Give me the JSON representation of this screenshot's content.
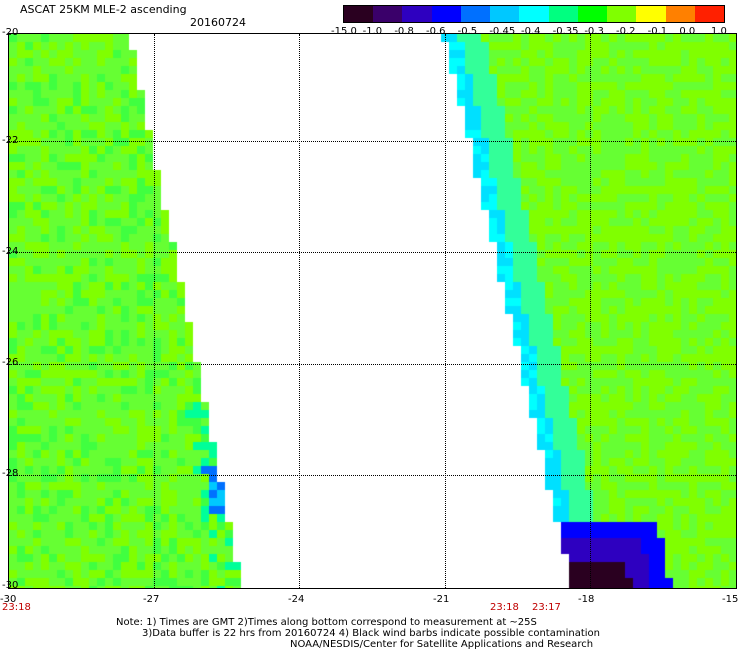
{
  "header": {
    "title": "ASCAT 25KM MLE-2 ascending",
    "date": "20160724"
  },
  "colorbar": {
    "labels": [
      "-15.0",
      "-1.0",
      "-0.8",
      "-0.6",
      "-0.5",
      "-0.45",
      "-0.4",
      "-0.35",
      "-0.3",
      "-0.2",
      "-0.1",
      "0.0",
      "1.0"
    ],
    "colors": [
      "#2a0020",
      "#3a006a",
      "#2e00c0",
      "#0000ff",
      "#0070ff",
      "#00c8ff",
      "#00ffff",
      "#00ff80",
      "#00ff00",
      "#80ff00",
      "#ffff00",
      "#ff8000",
      "#ff2000"
    ]
  },
  "map": {
    "lat_labels": [
      "-20",
      "-22",
      "-24",
      "-26",
      "-28",
      "-30"
    ],
    "lon_labels": [
      "-30",
      "-27",
      "-24",
      "-21",
      "-18",
      "-15"
    ],
    "lat_range": [
      -30,
      -20
    ],
    "lon_range": [
      -30,
      -15
    ],
    "grid": "dotted"
  },
  "times": [
    "23:18",
    "23:18",
    "23:17"
  ],
  "notes": [
    "Note: 1) Times are GMT 2)Times along bottom correspond to measurement at ~25S",
    "3)Data buffer is 22 hrs from 20160724 4) Black wind barbs indicate possible contamination",
    "NOAA/NESDIS/Center for Satellite Applications and Research"
  ]
}
